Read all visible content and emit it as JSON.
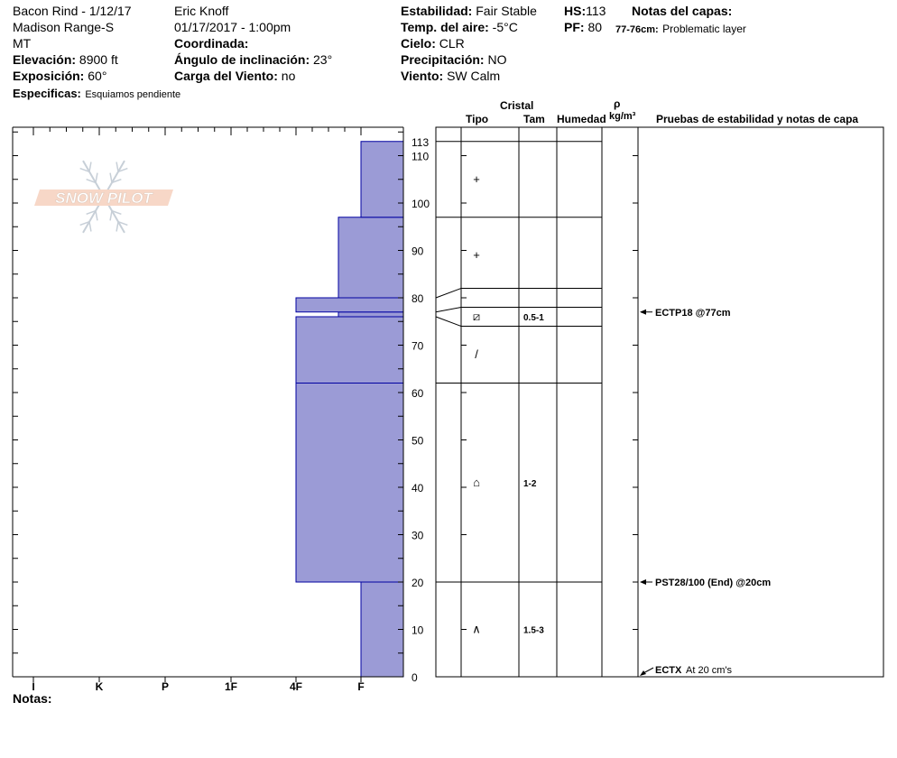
{
  "header": {
    "col1": {
      "line1": "Bacon Rind - 1/12/17",
      "line2": "Madison Range-S",
      "line3": "MT",
      "elev_label": "Elevación:",
      "elev_value": "8900 ft",
      "aspect_label": "Exposición:",
      "aspect_value": "60°",
      "specifics_label": "Especificas:",
      "specifics_value": "Esquiamos pendiente"
    },
    "col2": {
      "observer": "Eric Knoff",
      "datetime": "01/17/2017 - 1:00pm",
      "coord_label": "Coordinada:",
      "angle_label": "Ángulo de inclinación:",
      "angle_value": "23°",
      "wind_load_label": "Carga del Viento:",
      "wind_load_value": "no"
    },
    "col3": {
      "stability_label": "Estabilidad:",
      "stability_value": "Fair Stable",
      "air_temp_label": "Temp. del aire:",
      "air_temp_value": "-5°C",
      "sky_label": "Cielo:",
      "sky_value": "CLR",
      "precip_label": "Precipitación:",
      "precip_value": "NO",
      "wind_label": "Viento:",
      "wind_value": "SW Calm"
    },
    "col4": {
      "hs_label": "HS:",
      "hs_value": "113",
      "pf_label": "PF:",
      "pf_value": "80",
      "layer_notes_label": "Notas del capas:",
      "layer_note_range": "77-76cm:",
      "layer_note_text": "Problematic layer"
    }
  },
  "notes_label": "Notas:",
  "logo_text": "SNOW PILOT",
  "chart_data": {
    "type": "snow-profile",
    "height_axis": {
      "range": [
        0,
        113
      ],
      "ticks": [
        0,
        10,
        20,
        30,
        40,
        50,
        60,
        70,
        80,
        90,
        100,
        110,
        113
      ]
    },
    "hardness_scale": [
      "I",
      "K",
      "P",
      "1F",
      "4F",
      "F"
    ],
    "hardness_layers": [
      {
        "bottom": 0,
        "top": 20,
        "hardness": "F"
      },
      {
        "bottom": 20,
        "top": 62,
        "hardness": "4F"
      },
      {
        "bottom": 62,
        "top": 76,
        "hardness": "4F"
      },
      {
        "bottom": 76,
        "top": 77,
        "hardness": "4F+"
      },
      {
        "bottom": 77,
        "top": 80,
        "hardness": "4F"
      },
      {
        "bottom": 80,
        "top": 97,
        "hardness": "4F+"
      },
      {
        "bottom": 97,
        "top": 113,
        "hardness": "F+"
      }
    ],
    "layer_boundaries": [
      113,
      97,
      82,
      78,
      74,
      62,
      20
    ],
    "connector_left_heights": [
      80,
      77,
      76
    ],
    "column_headers": {
      "crystal": "Cristal",
      "type": "Tipo",
      "size": "Tam",
      "moisture": "Humedad",
      "density_symbol": "ρ",
      "density_unit": "kg/m³",
      "tests": "Pruebas de estabilidad y notas de capa"
    },
    "crystals": [
      {
        "height": 105,
        "symbol": "+",
        "size": ""
      },
      {
        "height": 89,
        "symbol": "+",
        "size": ""
      },
      {
        "height": 76,
        "symbol": "⧄",
        "size": "0.5-1"
      },
      {
        "height": 68,
        "symbol": "/",
        "size": ""
      },
      {
        "height": 41,
        "symbol": "⌂",
        "size": "1-2"
      },
      {
        "height": 10,
        "symbol": "∧",
        "size": "1.5-3"
      }
    ],
    "tests": [
      {
        "height": 77,
        "text": "ECTP18 @77cm"
      },
      {
        "height": 20,
        "text": "PST28/100 (End) @20cm"
      },
      {
        "height": 0,
        "text": "ECTX",
        "note": "At 20 cm's"
      }
    ],
    "colors": {
      "layer_fill": "#9b9bd6",
      "layer_line": "#0000a0",
      "axis": "#000000"
    }
  }
}
